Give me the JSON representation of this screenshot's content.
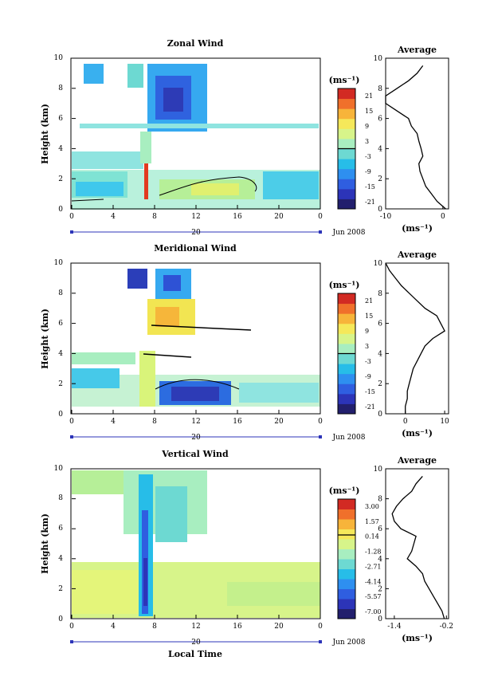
{
  "colors": {
    "scale": [
      "#221f6d",
      "#2c34b8",
      "#2f5ee0",
      "#2e8ff0",
      "#27bde8",
      "#6dd9d2",
      "#a8eec0",
      "#d7f48a",
      "#f5e85a",
      "#f7b43a",
      "#f0702b",
      "#d22a23"
    ]
  },
  "xaxis": {
    "ticks": [
      "0",
      "4",
      "8",
      "12",
      "16",
      "20",
      "0"
    ],
    "date_label": "20",
    "month_label": "Jun 2008",
    "xlabel": "Local Time"
  },
  "ylabel": "Height (km)",
  "panels": [
    {
      "title": "Zonal Wind",
      "cb_unit": "(ms⁻¹)",
      "cb_labels": [
        "21",
        "15",
        "9",
        "3",
        "-3",
        "-9",
        "-15",
        "-21"
      ],
      "profile_title": "Average",
      "profile_xticks": [
        "-10",
        "0"
      ],
      "profile_unit": "(ms⁻¹)"
    },
    {
      "title": "Meridional Wind",
      "cb_unit": "(ms⁻¹)",
      "cb_labels": [
        "21",
        "15",
        "9",
        "3",
        "-3",
        "-9",
        "-15",
        "-21"
      ],
      "profile_title": "Average",
      "profile_xticks": [
        "0",
        "10"
      ],
      "profile_unit": "(ms⁻¹)"
    },
    {
      "title": "Vertical Wind",
      "cb_unit": "(ms⁻¹)",
      "cb_labels": [
        "3.00",
        "1.57",
        "0.14",
        "-1.28",
        "-2.71",
        "-4.14",
        "-5.57",
        "-7.00"
      ],
      "profile_title": "Average",
      "profile_xticks": [
        "-1.4",
        "-0.2"
      ],
      "profile_unit": "(ms⁻¹)"
    }
  ],
  "chart_data": [
    {
      "type": "heatmap",
      "title": "Zonal Wind",
      "ylabel": "Height (km)",
      "ylim": [
        0,
        10
      ],
      "xlim": [
        0,
        24
      ],
      "x_ticks": [
        "0",
        "4",
        "8",
        "12",
        "16",
        "20",
        "0"
      ],
      "colorbar": {
        "labels": [
          "21",
          "15",
          "9",
          "3",
          "-3",
          "-9",
          "-15",
          "-21"
        ],
        "range": [
          -24,
          24
        ]
      },
      "profile": {
        "title": "Average",
        "xlim": [
          -10,
          1
        ],
        "x_ticks": [
          "-10",
          "0"
        ],
        "height": [
          0,
          0.5,
          1.0,
          1.5,
          2.0,
          2.5,
          3.0,
          3.5,
          4.0,
          4.5,
          5.0,
          5.5,
          6.0,
          6.5,
          7.0,
          7.5,
          8.0,
          8.5,
          9.0,
          9.5
        ],
        "value": [
          0.5,
          -1,
          -2,
          -3,
          -3.5,
          -4,
          -4.2,
          -3.5,
          -3.8,
          -4.2,
          -4.5,
          -5.5,
          -6,
          -8,
          -10,
          -10,
          -8,
          -6,
          -4.5,
          -3.5
        ]
      }
    },
    {
      "type": "heatmap",
      "title": "Meridional Wind",
      "ylabel": "Height (km)",
      "ylim": [
        0,
        10
      ],
      "xlim": [
        0,
        24
      ],
      "x_ticks": [
        "0",
        "4",
        "8",
        "12",
        "16",
        "20",
        "0"
      ],
      "colorbar": {
        "labels": [
          "21",
          "15",
          "9",
          "3",
          "-3",
          "-9",
          "-15",
          "-21"
        ],
        "range": [
          -24,
          24
        ]
      },
      "profile": {
        "title": "Average",
        "xlim": [
          -5,
          11
        ],
        "x_ticks": [
          "0",
          "10"
        ],
        "height": [
          0,
          0.5,
          1.0,
          1.5,
          2.0,
          2.5,
          3.0,
          3.5,
          4.0,
          4.5,
          5.0,
          5.5,
          6.0,
          6.5,
          7.0,
          7.5,
          8.0,
          8.5,
          9.0,
          9.5,
          10.0
        ],
        "value": [
          0,
          0,
          0.5,
          0.5,
          1,
          1.5,
          2,
          3,
          4,
          5,
          7,
          10,
          9,
          8,
          5,
          3,
          1,
          -1,
          -2.5,
          -4,
          -5
        ]
      }
    },
    {
      "type": "heatmap",
      "title": "Vertical Wind",
      "ylabel": "Height (km)",
      "xlabel": "Local Time",
      "ylim": [
        0,
        10
      ],
      "xlim": [
        0,
        24
      ],
      "x_ticks": [
        "0",
        "4",
        "8",
        "12",
        "16",
        "20",
        "0"
      ],
      "colorbar": {
        "labels": [
          "3.00",
          "1.57",
          "0.14",
          "-1.28",
          "-2.71",
          "-4.14",
          "-5.57",
          "-7.00"
        ],
        "range": [
          -7.0,
          3.0
        ]
      },
      "profile": {
        "title": "Average",
        "xlim": [
          -1.6,
          -0.15
        ],
        "x_ticks": [
          "-1.4",
          "-0.2"
        ],
        "height": [
          0,
          0.5,
          1.0,
          1.5,
          2.0,
          2.5,
          3.0,
          3.5,
          4.0,
          4.5,
          5.0,
          5.5,
          6.0,
          6.5,
          7.0,
          7.5,
          8.0,
          8.5,
          9.0,
          9.5
        ],
        "value": [
          -0.25,
          -0.3,
          -0.4,
          -0.5,
          -0.6,
          -0.7,
          -0.75,
          -0.9,
          -1.1,
          -1.0,
          -0.95,
          -0.9,
          -1.25,
          -1.4,
          -1.45,
          -1.35,
          -1.2,
          -1.0,
          -0.9,
          -0.75
        ]
      }
    }
  ]
}
